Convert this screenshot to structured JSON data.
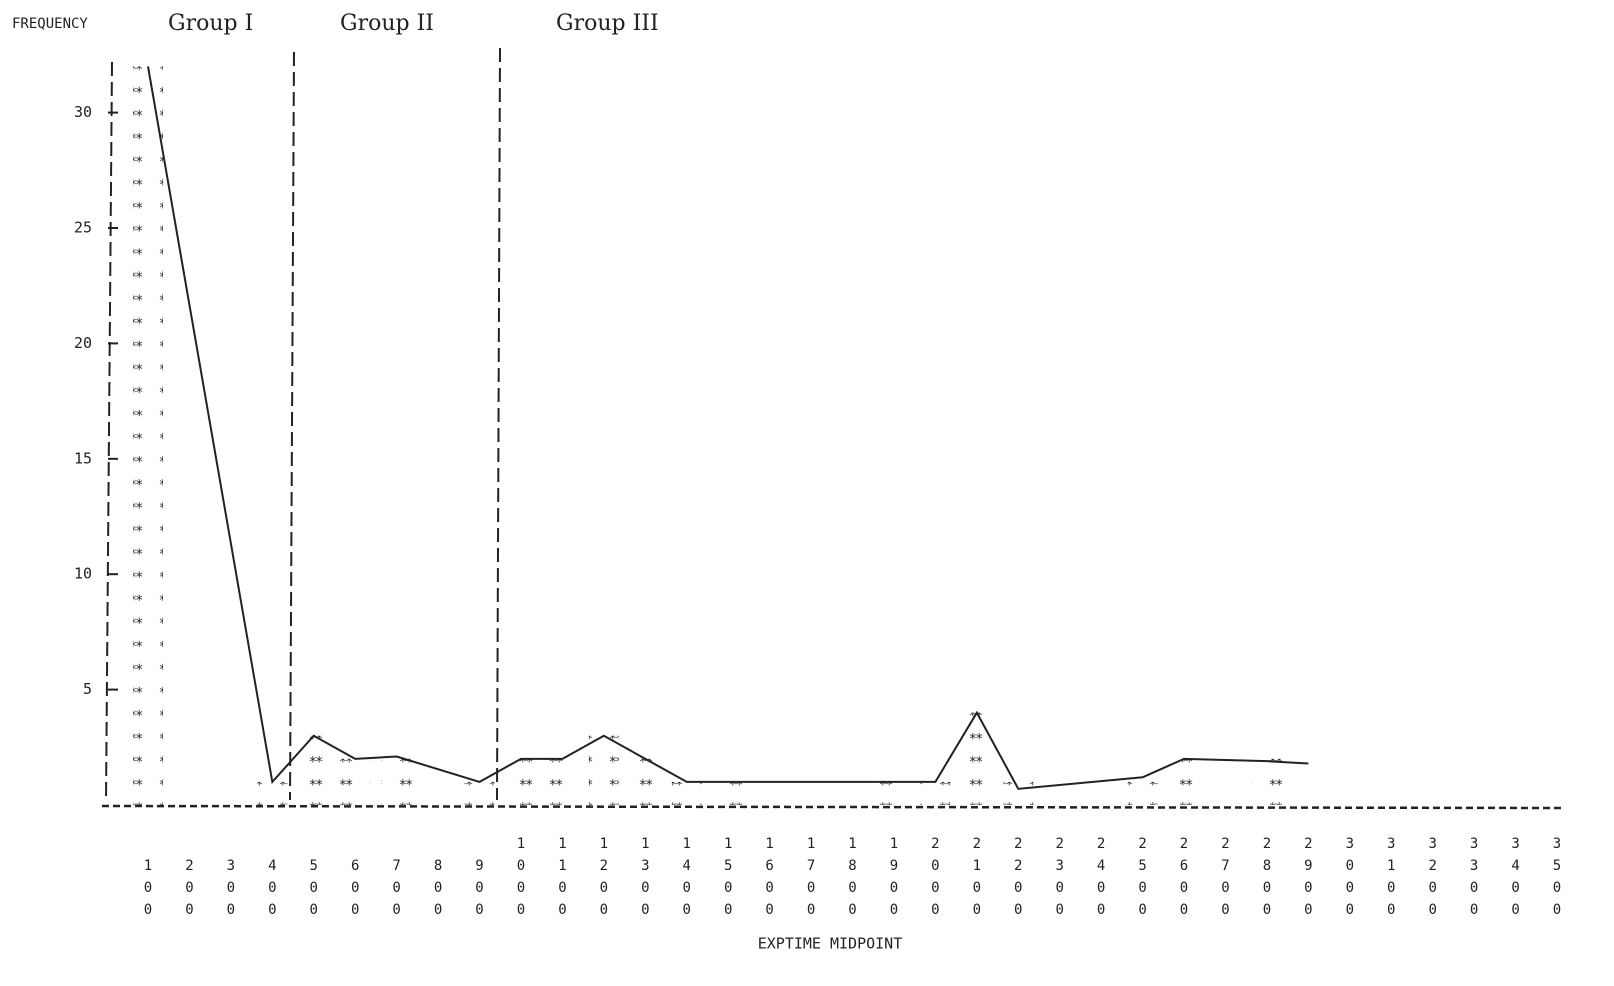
{
  "chart_data": {
    "type": "bar",
    "ylabel": "FREQUENCY",
    "xlabel": "EXPTIME MIDPOINT",
    "annotations": [
      "Group I",
      "Group II",
      "Group III"
    ],
    "categories": [
      "100",
      "200",
      "300",
      "400",
      "500",
      "600",
      "700",
      "800",
      "900",
      "1000",
      "1100",
      "1200",
      "1300",
      "1400",
      "1500",
      "1600",
      "1700",
      "1800",
      "1900",
      "2000",
      "2100",
      "2200",
      "2300",
      "2400",
      "2500",
      "2600",
      "2700",
      "2800",
      "2900",
      "3000",
      "3100",
      "3200",
      "3300",
      "3400",
      "3500"
    ],
    "values": [
      32,
      0,
      0,
      1,
      3,
      2,
      2,
      0,
      1,
      2,
      2,
      3,
      2,
      1,
      1,
      0,
      0,
      0,
      1,
      1,
      4,
      1,
      0,
      0,
      1,
      2,
      0,
      2,
      0,
      0,
      0,
      0,
      0,
      0,
      0
    ],
    "line": {
      "x": [
        100,
        400,
        500,
        600,
        700,
        900,
        1000,
        1100,
        1200,
        1300,
        1400,
        1500,
        2000,
        2100,
        2200,
        2500,
        2600,
        2800,
        2900
      ],
      "values": [
        32,
        1,
        3,
        2,
        2.1,
        1,
        2,
        2,
        3,
        2,
        1,
        1,
        1,
        4,
        0.7,
        1.2,
        2,
        1.9,
        1.8
      ]
    },
    "ylim": [
      0,
      32.5
    ],
    "yticks": [
      5,
      10,
      15,
      20,
      25,
      30
    ]
  }
}
